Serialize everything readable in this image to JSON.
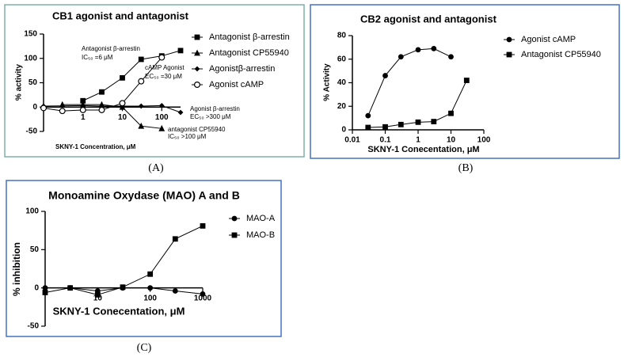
{
  "chart_data": [
    {
      "type": "line",
      "title": "CB1 agonist and antagonist",
      "xlabel": "SKNY-1 Concentration, μM",
      "ylabel": "% activity",
      "caption": "(A)",
      "xscale": "log",
      "xlim": [
        0.1,
        300
      ],
      "xticks": [
        1,
        10,
        100
      ],
      "ylim": [
        -50,
        150
      ],
      "yticks": [
        -50,
        0,
        50,
        100,
        150
      ],
      "series": [
        {
          "name": "Antagonist β-arrestin",
          "color": "#000000",
          "marker": "square",
          "x": [
            1,
            3,
            10,
            30,
            100,
            300
          ],
          "values": [
            13,
            31,
            60,
            98,
            105,
            116
          ]
        },
        {
          "name": "Antagonist CP55940",
          "color": "#000000",
          "marker": "triangle",
          "x": [
            0.3,
            1,
            3,
            10,
            30,
            100
          ],
          "values": [
            5,
            5,
            5,
            0,
            -39,
            -44
          ]
        },
        {
          "name": "Agonistβ-arrestin",
          "color": "#000000",
          "marker": "diamond",
          "x": [
            0.1,
            1,
            3,
            10,
            30,
            100,
            300
          ],
          "values": [
            2,
            3,
            2,
            2,
            2,
            3,
            -11
          ]
        },
        {
          "name": "Agonist cAMP",
          "color": "#000000",
          "marker": "circle-open",
          "x": [
            0.1,
            0.3,
            1,
            3,
            10,
            30,
            100
          ],
          "values": [
            -2,
            -8,
            -6,
            -6,
            8,
            53,
            102
          ]
        }
      ],
      "annotations": [
        "Antagonist β-arrestin",
        "IC₅₀ =6 μM",
        "cAMP Agonist",
        "EC₅₀ =30 μM",
        "Agonist β-arrestin",
        "EC₅₀ >300 μM",
        "antagonist CP55940",
        "IC₅₀ >100 μM"
      ]
    },
    {
      "type": "line",
      "title": "CB2 agonist and antagonist",
      "xlabel": "SKNY-1 Conecentation, μM",
      "ylabel": "% Activity",
      "caption": "(B)",
      "xscale": "log",
      "xlim": [
        0.01,
        100
      ],
      "xticks": [
        0.01,
        0.1,
        1,
        10,
        100
      ],
      "ylim": [
        0,
        80
      ],
      "yticks": [
        0,
        20,
        40,
        60,
        80
      ],
      "series": [
        {
          "name": "Agonist cAMP",
          "color": "#000000",
          "marker": "circle",
          "x": [
            0.03,
            0.1,
            0.3,
            1,
            3,
            10
          ],
          "values": [
            12,
            46,
            62,
            68,
            69,
            62
          ]
        },
        {
          "name": "Antagonist CP55940",
          "color": "#000000",
          "marker": "square",
          "x": [
            0.03,
            0.1,
            0.3,
            1,
            3,
            10,
            30
          ],
          "values": [
            2,
            2.5,
            4.5,
            6.5,
            7,
            14,
            42
          ]
        }
      ]
    },
    {
      "type": "line",
      "title": "Monoamine Oxydase (MAO) A and B",
      "xlabel": "SKNY-1 Conecentation, μM",
      "ylabel": "% inhibition",
      "caption": "(C)",
      "xscale": "log",
      "xlim": [
        1,
        1000
      ],
      "xticks": [
        10,
        100,
        1000
      ],
      "ylim": [
        -50,
        100
      ],
      "yticks": [
        -50,
        0,
        50,
        100
      ],
      "series": [
        {
          "name": "MAO-A",
          "color": "#000000",
          "marker": "circle",
          "x": [
            1,
            3,
            10,
            30,
            100,
            300,
            1000
          ],
          "values": [
            0,
            0,
            -4,
            0,
            0,
            -4,
            -8
          ]
        },
        {
          "name": "MAO-B",
          "color": "#000000",
          "marker": "square",
          "x": [
            1,
            3,
            10,
            30,
            100,
            300,
            1000
          ],
          "values": [
            -6,
            0,
            -9,
            1,
            18,
            64,
            81
          ]
        }
      ]
    }
  ]
}
